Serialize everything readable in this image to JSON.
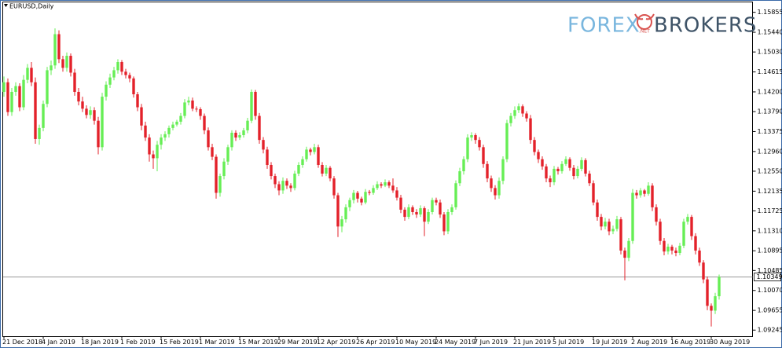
{
  "chart_data": {
    "type": "candlestick",
    "title": "EURUSD,Daily",
    "logo": {
      "left": "FOREX",
      "right": "BROKERS",
      "badge": ".NET"
    },
    "up_color": "#66ee55",
    "down_color": "#e3212a",
    "grid": false,
    "ylim": [
      1.0911,
      1.1607
    ],
    "yticks": [
      1.15855,
      {
        "value": 1.1544,
        "label": "1.15440"
      },
      {
        "value": 1.1503,
        "label": "1.15030"
      },
      1.14615,
      {
        "value": 1.142,
        "label": "1.14200"
      },
      {
        "value": 1.1379,
        "label": "1.13790"
      },
      1.13375,
      {
        "value": 1.1296,
        "label": "1.12960"
      },
      {
        "value": 1.1255,
        "label": "1.12550"
      },
      1.12135,
      1.11725,
      {
        "value": 1.1131,
        "label": "1.11310"
      },
      1.10895,
      1.10485,
      {
        "value": 1.1007,
        "label": "1.10070"
      },
      1.09655,
      1.09245
    ],
    "current_price": 1.10349,
    "categories": [
      "21 Dec 2018",
      null,
      null,
      null,
      null,
      null,
      null,
      null,
      null,
      null,
      "4 Jan 2019",
      null,
      null,
      null,
      null,
      null,
      null,
      null,
      null,
      null,
      "18 Jan 2019",
      null,
      null,
      null,
      null,
      null,
      null,
      null,
      null,
      null,
      "1 Feb 2019",
      null,
      null,
      null,
      null,
      null,
      null,
      null,
      null,
      null,
      "15 Feb 2019",
      null,
      null,
      null,
      null,
      null,
      null,
      null,
      null,
      null,
      "1 Mar 2019",
      null,
      null,
      null,
      null,
      null,
      null,
      null,
      null,
      null,
      "15 Mar 2019",
      null,
      null,
      null,
      null,
      null,
      null,
      null,
      null,
      null,
      "29 Mar 2019",
      null,
      null,
      null,
      null,
      null,
      null,
      null,
      null,
      null,
      "12 Apr 2019",
      null,
      null,
      null,
      null,
      null,
      null,
      null,
      null,
      null,
      "26 Apr 2019",
      null,
      null,
      null,
      null,
      null,
      null,
      null,
      null,
      null,
      "10 May 2019",
      null,
      null,
      null,
      null,
      null,
      null,
      null,
      null,
      null,
      "24 May 2019",
      null,
      null,
      null,
      null,
      null,
      null,
      null,
      null,
      null,
      "7 Jun 2019",
      null,
      null,
      null,
      null,
      null,
      null,
      null,
      null,
      null,
      "21 Jun 2019",
      null,
      null,
      null,
      null,
      null,
      null,
      null,
      null,
      null,
      "5 Jul 2019",
      null,
      null,
      null,
      null,
      null,
      null,
      null,
      null,
      null,
      "19 Jul 2019",
      null,
      null,
      null,
      null,
      null,
      null,
      null,
      null,
      null,
      "2 Aug 2019",
      null,
      null,
      null,
      null,
      null,
      null,
      null,
      null,
      null,
      "16 Aug 2019",
      null,
      null,
      null,
      null,
      null,
      null,
      null,
      null,
      null,
      "30 Aug 2019",
      null,
      null
    ],
    "candles": [
      [
        1.142,
        1.1452,
        1.141,
        1.144
      ],
      [
        1.144,
        1.1448,
        1.137,
        1.1378
      ],
      [
        1.1378,
        1.1428,
        1.137,
        1.142
      ],
      [
        1.142,
        1.144,
        1.1412,
        1.1432
      ],
      [
        1.1432,
        1.1438,
        1.138,
        1.1388
      ],
      [
        1.1388,
        1.1455,
        1.1382,
        1.1445
      ],
      [
        1.1445,
        1.1478,
        1.1438,
        1.147
      ],
      [
        1.147,
        1.1482,
        1.1432,
        1.144
      ],
      [
        1.144,
        1.145,
        1.1312,
        1.1322
      ],
      [
        1.1322,
        1.1352,
        1.131,
        1.1345
      ],
      [
        1.1345,
        1.1402,
        1.1338,
        1.1395
      ],
      [
        1.1395,
        1.1472,
        1.1388,
        1.1465
      ],
      [
        1.1465,
        1.1485,
        1.1455,
        1.1475
      ],
      [
        1.1475,
        1.1552,
        1.1468,
        1.154
      ],
      [
        1.154,
        1.1548,
        1.148,
        1.1488
      ],
      [
        1.1488,
        1.1495,
        1.1462,
        1.147
      ],
      [
        1.147,
        1.1502,
        1.1462,
        1.1495
      ],
      [
        1.1495,
        1.15,
        1.1452,
        1.146
      ],
      [
        1.146,
        1.1468,
        1.1412,
        1.142
      ],
      [
        1.142,
        1.1428,
        1.1392,
        1.14
      ],
      [
        1.14,
        1.141,
        1.1378,
        1.1385
      ],
      [
        1.1385,
        1.1392,
        1.1365,
        1.1372
      ],
      [
        1.1372,
        1.139,
        1.1364,
        1.1382
      ],
      [
        1.1382,
        1.1388,
        1.1352,
        1.136
      ],
      [
        1.136,
        1.1368,
        1.129,
        1.1305
      ],
      [
        1.1305,
        1.1418,
        1.1298,
        1.141
      ],
      [
        1.141,
        1.1442,
        1.1402,
        1.1435
      ],
      [
        1.1435,
        1.1458,
        1.1428,
        1.145
      ],
      [
        1.145,
        1.1472,
        1.1444,
        1.1465
      ],
      [
        1.1465,
        1.1488,
        1.1458,
        1.1482
      ],
      [
        1.1482,
        1.1486,
        1.1455,
        1.1462
      ],
      [
        1.1462,
        1.1468,
        1.1448,
        1.1455
      ],
      [
        1.1455,
        1.146,
        1.144,
        1.1448
      ],
      [
        1.1448,
        1.1452,
        1.1408,
        1.1415
      ],
      [
        1.1415,
        1.142,
        1.138,
        1.1388
      ],
      [
        1.1388,
        1.1395,
        1.134,
        1.135
      ],
      [
        1.135,
        1.1358,
        1.1318,
        1.1325
      ],
      [
        1.1325,
        1.1332,
        1.1275,
        1.129
      ],
      [
        1.129,
        1.1298,
        1.126,
        1.1282
      ],
      [
        1.1282,
        1.1318,
        1.1255,
        1.131
      ],
      [
        1.131,
        1.1332,
        1.13,
        1.1325
      ],
      [
        1.1325,
        1.1338,
        1.1318,
        1.1332
      ],
      [
        1.1332,
        1.135,
        1.1325,
        1.1345
      ],
      [
        1.1345,
        1.1358,
        1.134,
        1.1352
      ],
      [
        1.1352,
        1.1362,
        1.1348,
        1.1358
      ],
      [
        1.1358,
        1.1376,
        1.1352,
        1.137
      ],
      [
        1.137,
        1.1405,
        1.1365,
        1.1398
      ],
      [
        1.1398,
        1.141,
        1.1392,
        1.1402
      ],
      [
        1.1402,
        1.1408,
        1.138,
        1.1385
      ],
      [
        1.1385,
        1.139,
        1.1378,
        1.1384
      ],
      [
        1.1384,
        1.1388,
        1.1362,
        1.137
      ],
      [
        1.137,
        1.1375,
        1.1332,
        1.134
      ],
      [
        1.134,
        1.1346,
        1.1298,
        1.1305
      ],
      [
        1.1305,
        1.1312,
        1.1278,
        1.1285
      ],
      [
        1.1285,
        1.129,
        1.1198,
        1.121
      ],
      [
        1.121,
        1.125,
        1.1202,
        1.1245
      ],
      [
        1.1245,
        1.1282,
        1.1238,
        1.1275
      ],
      [
        1.1275,
        1.131,
        1.1268,
        1.1305
      ],
      [
        1.1305,
        1.134,
        1.1298,
        1.1335
      ],
      [
        1.1335,
        1.134,
        1.1318,
        1.1325
      ],
      [
        1.1325,
        1.1336,
        1.132,
        1.133
      ],
      [
        1.133,
        1.1345,
        1.1325,
        1.134
      ],
      [
        1.134,
        1.1366,
        1.1334,
        1.136
      ],
      [
        1.136,
        1.1425,
        1.1355,
        1.142
      ],
      [
        1.142,
        1.1424,
        1.1362,
        1.137
      ],
      [
        1.137,
        1.1376,
        1.1312,
        1.132
      ],
      [
        1.132,
        1.1326,
        1.1292,
        1.13
      ],
      [
        1.13,
        1.1306,
        1.126,
        1.1268
      ],
      [
        1.1268,
        1.1274,
        1.1238,
        1.1245
      ],
      [
        1.1245,
        1.125,
        1.122,
        1.1228
      ],
      [
        1.1228,
        1.1234,
        1.1205,
        1.1215
      ],
      [
        1.1215,
        1.1242,
        1.1208,
        1.1235
      ],
      [
        1.1235,
        1.124,
        1.1218,
        1.1225
      ],
      [
        1.1225,
        1.123,
        1.1212,
        1.122
      ],
      [
        1.122,
        1.1256,
        1.1215,
        1.125
      ],
      [
        1.125,
        1.1274,
        1.1245,
        1.1268
      ],
      [
        1.1268,
        1.1286,
        1.1262,
        1.128
      ],
      [
        1.128,
        1.1306,
        1.1275,
        1.13
      ],
      [
        1.13,
        1.1304,
        1.1288,
        1.1295
      ],
      [
        1.1295,
        1.1312,
        1.129,
        1.1305
      ],
      [
        1.1305,
        1.131,
        1.1262,
        1.1268
      ],
      [
        1.1268,
        1.1274,
        1.1244,
        1.125
      ],
      [
        1.125,
        1.1268,
        1.1245,
        1.1262
      ],
      [
        1.1262,
        1.1266,
        1.1234,
        1.124
      ],
      [
        1.124,
        1.1245,
        1.1198,
        1.1205
      ],
      [
        1.1205,
        1.121,
        1.1118,
        1.114
      ],
      [
        1.114,
        1.1162,
        1.1128,
        1.1155
      ],
      [
        1.1155,
        1.1186,
        1.1148,
        1.118
      ],
      [
        1.118,
        1.12,
        1.1172,
        1.1195
      ],
      [
        1.1195,
        1.1216,
        1.1188,
        1.121
      ],
      [
        1.121,
        1.1214,
        1.119,
        1.1198
      ],
      [
        1.1198,
        1.1202,
        1.1184,
        1.119
      ],
      [
        1.119,
        1.1218,
        1.1186,
        1.1212
      ],
      [
        1.1212,
        1.1216,
        1.1205,
        1.121
      ],
      [
        1.121,
        1.1226,
        1.1206,
        1.122
      ],
      [
        1.122,
        1.1234,
        1.1216,
        1.1228
      ],
      [
        1.1228,
        1.1232,
        1.122,
        1.1225
      ],
      [
        1.1225,
        1.1238,
        1.1222,
        1.1232
      ],
      [
        1.1232,
        1.1236,
        1.122,
        1.1225
      ],
      [
        1.1225,
        1.124,
        1.121,
        1.1215
      ],
      [
        1.1215,
        1.1222,
        1.1194,
        1.12
      ],
      [
        1.12,
        1.1206,
        1.1168,
        1.1175
      ],
      [
        1.1175,
        1.118,
        1.1152,
        1.116
      ],
      [
        1.116,
        1.1186,
        1.1155,
        1.118
      ],
      [
        1.118,
        1.1184,
        1.1164,
        1.117
      ],
      [
        1.117,
        1.1176,
        1.1158,
        1.1165
      ],
      [
        1.1165,
        1.1184,
        1.116,
        1.1178
      ],
      [
        1.1178,
        1.1182,
        1.112,
        1.115
      ],
      [
        1.115,
        1.1176,
        1.1145,
        1.117
      ],
      [
        1.117,
        1.12,
        1.1165,
        1.1195
      ],
      [
        1.1195,
        1.12,
        1.1184,
        1.119
      ],
      [
        1.119,
        1.1196,
        1.1158,
        1.1165
      ],
      [
        1.1165,
        1.117,
        1.1122,
        1.113
      ],
      [
        1.113,
        1.1176,
        1.1124,
        1.117
      ],
      [
        1.117,
        1.1186,
        1.1164,
        1.118
      ],
      [
        1.118,
        1.1236,
        1.1175,
        1.123
      ],
      [
        1.123,
        1.1262,
        1.1224,
        1.1255
      ],
      [
        1.1255,
        1.1286,
        1.1248,
        1.128
      ],
      [
        1.128,
        1.1332,
        1.1274,
        1.1325
      ],
      [
        1.1325,
        1.1336,
        1.1318,
        1.133
      ],
      [
        1.133,
        1.1334,
        1.1312,
        1.132
      ],
      [
        1.132,
        1.1326,
        1.1298,
        1.1305
      ],
      [
        1.1305,
        1.131,
        1.1262,
        1.127
      ],
      [
        1.127,
        1.1276,
        1.1232,
        1.124
      ],
      [
        1.124,
        1.1246,
        1.1212,
        1.122
      ],
      [
        1.122,
        1.1226,
        1.1196,
        1.1205
      ],
      [
        1.1205,
        1.1242,
        1.1198,
        1.1235
      ],
      [
        1.1235,
        1.1286,
        1.1228,
        1.128
      ],
      [
        1.128,
        1.1362,
        1.1274,
        1.1355
      ],
      [
        1.1355,
        1.1376,
        1.1348,
        1.137
      ],
      [
        1.137,
        1.139,
        1.1364,
        1.1382
      ],
      [
        1.1382,
        1.1396,
        1.1376,
        1.139
      ],
      [
        1.139,
        1.1394,
        1.1368,
        1.1375
      ],
      [
        1.1375,
        1.138,
        1.1358,
        1.1365
      ],
      [
        1.1365,
        1.1372,
        1.1312,
        1.132
      ],
      [
        1.132,
        1.1326,
        1.1288,
        1.1295
      ],
      [
        1.1295,
        1.13,
        1.1272,
        1.128
      ],
      [
        1.128,
        1.1286,
        1.1258,
        1.1265
      ],
      [
        1.1265,
        1.127,
        1.1232,
        1.124
      ],
      [
        1.124,
        1.1246,
        1.1222,
        1.1232
      ],
      [
        1.1232,
        1.1266,
        1.1226,
        1.126
      ],
      [
        1.126,
        1.1264,
        1.1248,
        1.1255
      ],
      [
        1.1255,
        1.1276,
        1.125,
        1.127
      ],
      [
        1.127,
        1.1286,
        1.1266,
        1.128
      ],
      [
        1.128,
        1.1284,
        1.1256,
        1.1262
      ],
      [
        1.1262,
        1.1268,
        1.1238,
        1.1245
      ],
      [
        1.1245,
        1.1266,
        1.124,
        1.126
      ],
      [
        1.126,
        1.1284,
        1.1255,
        1.1278
      ],
      [
        1.1278,
        1.1282,
        1.1244,
        1.125
      ],
      [
        1.125,
        1.1256,
        1.1224,
        1.123
      ],
      [
        1.123,
        1.1236,
        1.1184,
        1.119
      ],
      [
        1.119,
        1.1196,
        1.1152,
        1.116
      ],
      [
        1.116,
        1.1166,
        1.1132,
        1.114
      ],
      [
        1.114,
        1.1158,
        1.1134,
        1.115
      ],
      [
        1.115,
        1.1156,
        1.1122,
        1.113
      ],
      [
        1.113,
        1.1142,
        1.1124,
        1.1135
      ],
      [
        1.1135,
        1.1162,
        1.113,
        1.1155
      ],
      [
        1.1155,
        1.116,
        1.1082,
        1.109
      ],
      [
        1.109,
        1.1096,
        1.1028,
        1.1075
      ],
      [
        1.1075,
        1.1116,
        1.1068,
        1.111
      ],
      [
        1.111,
        1.1218,
        1.1104,
        1.121
      ],
      [
        1.121,
        1.1216,
        1.1198,
        1.1205
      ],
      [
        1.1205,
        1.122,
        1.12,
        1.1215
      ],
      [
        1.1215,
        1.1218,
        1.1202,
        1.1208
      ],
      [
        1.1208,
        1.1232,
        1.1204,
        1.1225
      ],
      [
        1.1225,
        1.123,
        1.1172,
        1.118
      ],
      [
        1.118,
        1.1186,
        1.1142,
        1.115
      ],
      [
        1.115,
        1.1156,
        1.1102,
        1.111
      ],
      [
        1.111,
        1.1116,
        1.108,
        1.1088
      ],
      [
        1.1088,
        1.1104,
        1.1082,
        1.1098
      ],
      [
        1.1098,
        1.1102,
        1.1082,
        1.109
      ],
      [
        1.109,
        1.1096,
        1.1078,
        1.1085
      ],
      [
        1.1085,
        1.1106,
        1.108,
        1.11
      ],
      [
        1.11,
        1.1156,
        1.1095,
        1.115
      ],
      [
        1.115,
        1.1166,
        1.1144,
        1.116
      ],
      [
        1.116,
        1.1164,
        1.1112,
        1.112
      ],
      [
        1.112,
        1.1126,
        1.1082,
        1.109
      ],
      [
        1.109,
        1.1096,
        1.1058,
        1.1065
      ],
      [
        1.1065,
        1.107,
        1.1022,
        1.103
      ],
      [
        1.103,
        1.1036,
        1.0966,
        1.0975
      ],
      [
        1.0975,
        1.098,
        1.0932,
        1.0965
      ],
      [
        1.0965,
        1.1002,
        1.0958,
        1.0995
      ],
      [
        1.0995,
        1.104,
        1.0988,
        1.1035
      ]
    ]
  }
}
